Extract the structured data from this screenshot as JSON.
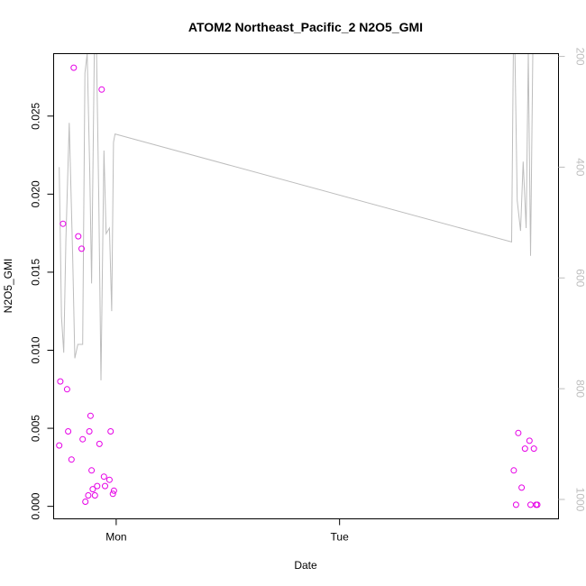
{
  "chart_data": {
    "type": "scatter",
    "title": "ATOM2 Northeast_Pacific_2 N2O5_GMI",
    "xlabel": "Date",
    "ylabel": "N2O5_GMI",
    "x_ticks": [
      {
        "value": 0.0,
        "label": "Mon"
      },
      {
        "value": 1.0,
        "label": "Tue"
      }
    ],
    "xlim": [
      -0.28,
      1.98
    ],
    "ylim": [
      -0.0008,
      0.029
    ],
    "y_ticks": [
      {
        "value": 0.0,
        "label": "0.000"
      },
      {
        "value": 0.005,
        "label": "0.005"
      },
      {
        "value": 0.01,
        "label": "0.010"
      },
      {
        "value": 0.015,
        "label": "0.015"
      },
      {
        "value": 0.02,
        "label": "0.020"
      },
      {
        "value": 0.025,
        "label": "0.025"
      }
    ],
    "y2lim": [
      1035,
      195
    ],
    "y2_ticks": [
      {
        "value": 200,
        "label": "200"
      },
      {
        "value": 400,
        "label": "400"
      },
      {
        "value": 600,
        "label": "600"
      },
      {
        "value": 800,
        "label": "800"
      },
      {
        "value": 1000,
        "label": "1000"
      }
    ],
    "grid": false,
    "colors": {
      "points": "#e600e6",
      "pressure_line": "#bdbdbd",
      "axes": "#000000"
    },
    "series": [
      {
        "values_axis": "left",
        "points": [
          {
            "x": -0.255,
            "y": 0.0039
          },
          {
            "x": -0.25,
            "y": 0.008
          },
          {
            "x": -0.238,
            "y": 0.0181
          },
          {
            "x": -0.22,
            "y": 0.0075
          },
          {
            "x": -0.215,
            "y": 0.0048
          },
          {
            "x": -0.2,
            "y": 0.003
          },
          {
            "x": -0.19,
            "y": 0.0281
          },
          {
            "x": -0.17,
            "y": 0.0173
          },
          {
            "x": -0.155,
            "y": 0.0165
          },
          {
            "x": -0.15,
            "y": 0.0043
          },
          {
            "x": -0.138,
            "y": 0.0003
          },
          {
            "x": -0.125,
            "y": 0.0007
          },
          {
            "x": -0.12,
            "y": 0.0048
          },
          {
            "x": -0.115,
            "y": 0.0058
          },
          {
            "x": -0.11,
            "y": 0.0023
          },
          {
            "x": -0.105,
            "y": 0.0011
          },
          {
            "x": -0.095,
            "y": 0.0007
          },
          {
            "x": -0.085,
            "y": 0.0013
          },
          {
            "x": -0.075,
            "y": 0.004
          },
          {
            "x": -0.065,
            "y": 0.0267
          },
          {
            "x": -0.055,
            "y": 0.0019
          },
          {
            "x": -0.05,
            "y": 0.0013
          },
          {
            "x": -0.03,
            "y": 0.0017
          },
          {
            "x": -0.025,
            "y": 0.0048
          },
          {
            "x": -0.015,
            "y": 0.0008
          },
          {
            "x": -0.01,
            "y": 0.001
          },
          {
            "x": 1.78,
            "y": 0.0023
          },
          {
            "x": 1.79,
            "y": 0.0001
          },
          {
            "x": 1.8,
            "y": 0.0047
          },
          {
            "x": 1.815,
            "y": 0.0012
          },
          {
            "x": 1.83,
            "y": 0.0037
          },
          {
            "x": 1.85,
            "y": 0.0042
          },
          {
            "x": 1.855,
            "y": 0.0001
          },
          {
            "x": 1.87,
            "y": 0.0037
          },
          {
            "x": 1.88,
            "y": 0.0001
          },
          {
            "x": 1.885,
            "y": 0.0001
          }
        ]
      },
      {
        "values_axis": "right",
        "line": [
          {
            "x": -0.255,
            "y": 400
          },
          {
            "x": -0.245,
            "y": 670
          },
          {
            "x": -0.235,
            "y": 735
          },
          {
            "x": -0.225,
            "y": 530
          },
          {
            "x": -0.21,
            "y": 320
          },
          {
            "x": -0.195,
            "y": 560
          },
          {
            "x": -0.185,
            "y": 745
          },
          {
            "x": -0.172,
            "y": 720
          },
          {
            "x": -0.16,
            "y": 720
          },
          {
            "x": -0.15,
            "y": 720
          },
          {
            "x": -0.14,
            "y": 230
          },
          {
            "x": -0.13,
            "y": 195
          },
          {
            "x": -0.118,
            "y": 410
          },
          {
            "x": -0.11,
            "y": 610
          },
          {
            "x": -0.098,
            "y": 195
          },
          {
            "x": -0.088,
            "y": 195
          },
          {
            "x": -0.078,
            "y": 460
          },
          {
            "x": -0.068,
            "y": 785
          },
          {
            "x": -0.055,
            "y": 370
          },
          {
            "x": -0.045,
            "y": 520
          },
          {
            "x": -0.03,
            "y": 510
          },
          {
            "x": -0.02,
            "y": 660
          },
          {
            "x": -0.012,
            "y": 355
          },
          {
            "x": -0.005,
            "y": 340
          },
          {
            "x": 1.77,
            "y": 535
          },
          {
            "x": 1.778,
            "y": 195
          },
          {
            "x": 1.785,
            "y": 195
          },
          {
            "x": 1.795,
            "y": 460
          },
          {
            "x": 1.81,
            "y": 515
          },
          {
            "x": 1.822,
            "y": 390
          },
          {
            "x": 1.835,
            "y": 510
          },
          {
            "x": 1.845,
            "y": 195
          },
          {
            "x": 1.855,
            "y": 560
          },
          {
            "x": 1.865,
            "y": 195
          },
          {
            "x": 1.88,
            "y": 195
          }
        ]
      }
    ]
  }
}
